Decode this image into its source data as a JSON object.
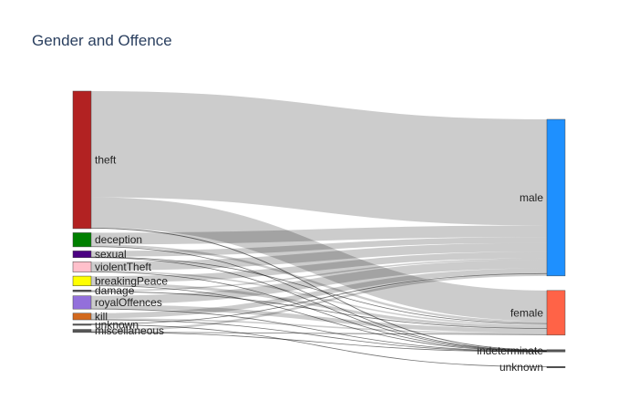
{
  "chart_data": {
    "type": "sankey",
    "title": "Gender and Offence",
    "sources": [
      {
        "name": "theft",
        "color": "#b22222"
      },
      {
        "name": "deception",
        "color": "#008000"
      },
      {
        "name": "sexual",
        "color": "#4b0082"
      },
      {
        "name": "violentTheft",
        "color": "#ffc0cb"
      },
      {
        "name": "breakingPeace",
        "color": "#ffff00"
      },
      {
        "name": "damage",
        "color": "#555555"
      },
      {
        "name": "royalOffences",
        "color": "#9370db"
      },
      {
        "name": "kill",
        "color": "#d2691e"
      },
      {
        "name": "unknown",
        "color": "#555555"
      },
      {
        "name": "miscellaneous",
        "color": "#555555"
      }
    ],
    "targets": [
      {
        "name": "male",
        "color": "#1e90ff"
      },
      {
        "name": "female",
        "color": "#ff6347"
      },
      {
        "name": "indeterminate",
        "color": "#555555"
      },
      {
        "name": "unknown",
        "color": "#555555"
      }
    ],
    "links": [
      {
        "source": "theft",
        "target": "male",
        "value": 73
      },
      {
        "source": "theft",
        "target": "female",
        "value": 21
      },
      {
        "source": "theft",
        "target": "indeterminate",
        "value": 0.6
      },
      {
        "source": "deception",
        "target": "male",
        "value": 8
      },
      {
        "source": "deception",
        "target": "female",
        "value": 1.5
      },
      {
        "source": "deception",
        "target": "indeterminate",
        "value": 0.2
      },
      {
        "source": "sexual",
        "target": "male",
        "value": 4
      },
      {
        "source": "sexual",
        "target": "female",
        "value": 0.5
      },
      {
        "source": "sexual",
        "target": "indeterminate",
        "value": 0.1
      },
      {
        "source": "violentTheft",
        "target": "male",
        "value": 6
      },
      {
        "source": "violentTheft",
        "target": "female",
        "value": 1
      },
      {
        "source": "violentTheft",
        "target": "indeterminate",
        "value": 0.1
      },
      {
        "source": "breakingPeace",
        "target": "male",
        "value": 4.5
      },
      {
        "source": "breakingPeace",
        "target": "female",
        "value": 2
      },
      {
        "source": "breakingPeace",
        "target": "indeterminate",
        "value": 0.2
      },
      {
        "source": "damage",
        "target": "male",
        "value": 1
      },
      {
        "source": "damage",
        "target": "female",
        "value": 0.2
      },
      {
        "source": "royalOffences",
        "target": "male",
        "value": 6
      },
      {
        "source": "royalOffences",
        "target": "female",
        "value": 3
      },
      {
        "source": "royalOffences",
        "target": "indeterminate",
        "value": 0.1
      },
      {
        "source": "kill",
        "target": "male",
        "value": 3.5
      },
      {
        "source": "kill",
        "target": "female",
        "value": 1
      },
      {
        "source": "kill",
        "target": "indeterminate",
        "value": 0.1
      },
      {
        "source": "unknown",
        "target": "unknown",
        "value": 0.5
      },
      {
        "source": "unknown",
        "target": "male",
        "value": 0.2
      },
      {
        "source": "miscellaneous",
        "target": "male",
        "value": 1.5
      },
      {
        "source": "miscellaneous",
        "target": "female",
        "value": 0.5
      },
      {
        "source": "miscellaneous",
        "target": "indeterminate",
        "value": 0.1
      }
    ],
    "link_color": "#cccccc"
  }
}
